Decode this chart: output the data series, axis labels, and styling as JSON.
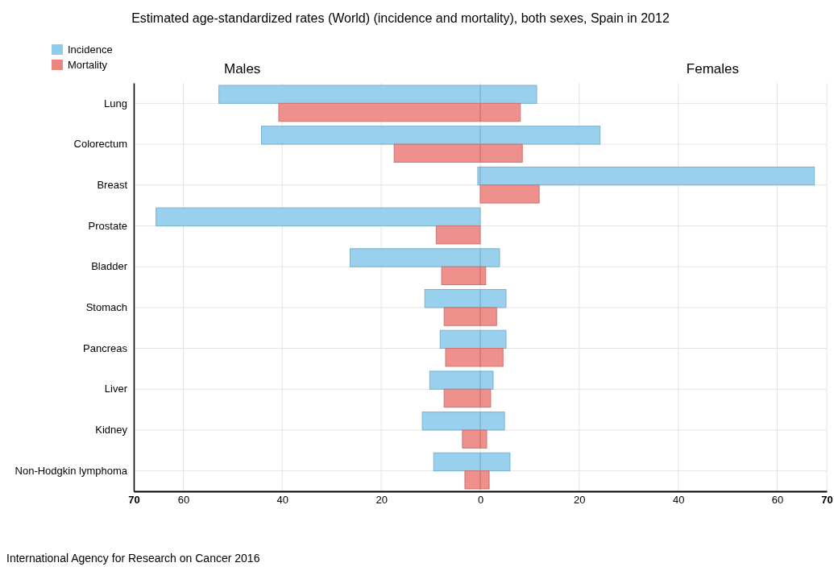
{
  "chart_data": {
    "type": "bar",
    "orientation": "horizontal",
    "title": "Estimated age-standardized rates (World) (incidence and mortality), both sexes, Spain in 2012",
    "categories": [
      "Lung",
      "Colorectum",
      "Breast",
      "Prostate",
      "Bladder",
      "Stomach",
      "Pancreas",
      "Liver",
      "Kidney",
      "Non-Hodgkin lymphoma"
    ],
    "series": [
      {
        "name": "Incidence",
        "color": "#8ecbec",
        "values": [
          -52.8,
          -44.2,
          -0.5,
          -65.5,
          -26.3,
          -11.2,
          -8.1,
          -10.2,
          -11.7,
          -9.4
        ]
      },
      {
        "name": "Mortality",
        "color": "#ec8480",
        "values": [
          -40.7,
          -17.4,
          null,
          -8.9,
          -7.8,
          -7.3,
          -7.0,
          -7.3,
          -3.6,
          -3.1
        ]
      },
      {
        "color": "#8ecbec",
        "values": [
          11.4,
          24.2,
          67.5,
          null,
          3.9,
          5.2,
          5.2,
          2.6,
          4.9,
          6.0
        ]
      },
      {
        "color": "#ec8480",
        "values": [
          8.1,
          8.5,
          11.9,
          null,
          1.1,
          3.3,
          4.6,
          2.1,
          1.3,
          1.8
        ]
      }
    ],
    "xlim": [
      -70,
      70
    ],
    "xticks": [
      {
        "value": -70,
        "label": "70"
      },
      {
        "value": -60,
        "label": "60"
      },
      {
        "value": -40,
        "label": "40"
      },
      {
        "value": -20,
        "label": "20"
      },
      0,
      20,
      40,
      60,
      70
    ],
    "grid": true,
    "legend": "top left",
    "annotations": [
      "Males",
      "Females",
      "International Agency for Research on Cancer 2016"
    ]
  }
}
